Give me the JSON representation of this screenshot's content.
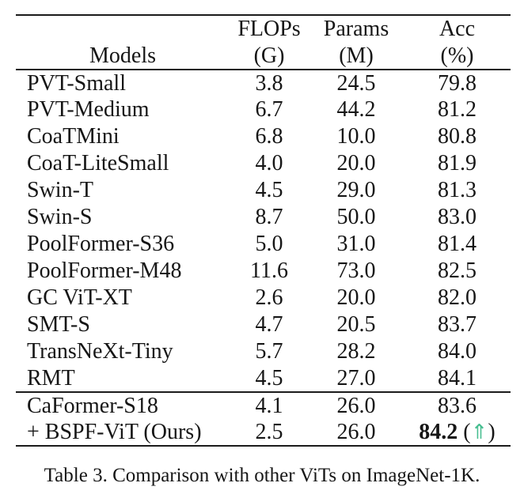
{
  "accent_color": "#45bd8f",
  "text_color": "#161616",
  "table": {
    "headers": {
      "models": "Models",
      "flops1": "FLOPs",
      "flops2": "(G)",
      "params1": "Params",
      "params2": "(M)",
      "acc1": "Acc",
      "acc2": "(%)"
    },
    "rows": [
      {
        "model": "PVT-Small",
        "flops": "3.8",
        "params": "24.5",
        "acc": "79.8"
      },
      {
        "model": "PVT-Medium",
        "flops": "6.7",
        "params": "44.2",
        "acc": "81.2"
      },
      {
        "model": "CoaTMini",
        "flops": "6.8",
        "params": "10.0",
        "acc": "80.8"
      },
      {
        "model": "CoaT-LiteSmall",
        "flops": "4.0",
        "params": "20.0",
        "acc": "81.9"
      },
      {
        "model": "Swin-T",
        "flops": "4.5",
        "params": "29.0",
        "acc": "81.3"
      },
      {
        "model": "Swin-S",
        "flops": "8.7",
        "params": "50.0",
        "acc": "83.0"
      },
      {
        "model": "PoolFormer-S36",
        "flops": "5.0",
        "params": "31.0",
        "acc": "81.4"
      },
      {
        "model": "PoolFormer-M48",
        "flops": "11.6",
        "params": "73.0",
        "acc": "82.5"
      },
      {
        "model": "GC ViT-XT",
        "flops": "2.6",
        "params": "20.0",
        "acc": "82.0"
      },
      {
        "model": "SMT-S",
        "flops": "4.7",
        "params": "20.5",
        "acc": "83.7"
      },
      {
        "model": "TransNeXt-Tiny",
        "flops": "5.7",
        "params": "28.2",
        "acc": "84.0"
      },
      {
        "model": "RMT",
        "flops": "4.5",
        "params": "27.0",
        "acc": "84.1"
      },
      {
        "model": "CaFormer-S18",
        "flops": "4.1",
        "params": "26.0",
        "acc": "83.6"
      },
      {
        "model": "+ BSPF-ViT (Ours)",
        "flops": "2.5",
        "params": "26.0",
        "acc": "84.2",
        "open_paren": "(",
        "arrow": "⇑",
        "close_paren": ")"
      }
    ]
  },
  "caption": "Table 3. Comparison with other ViTs on ImageNet-1K."
}
